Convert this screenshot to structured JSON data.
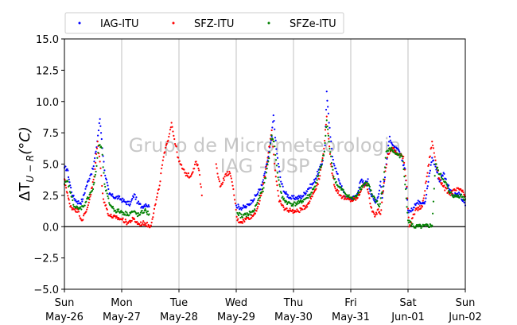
{
  "chart_data": {
    "type": "scatter",
    "title": "",
    "ylabel": "ΔT_{U−R}(°C)",
    "ylabel_parts": {
      "main": "ΔT",
      "sub": "U − R",
      "suffix": "(°C)"
    },
    "xlabel": "",
    "ylim": [
      -5.0,
      15.0
    ],
    "xlim_days": [
      "2019-05-26",
      "2019-06-02"
    ],
    "y_ticks": [
      "−5.0",
      "−2.5",
      "0.0",
      "2.5",
      "5.0",
      "7.5",
      "10.0",
      "12.5",
      "15.0"
    ],
    "y_tick_values": [
      -5.0,
      -2.5,
      0.0,
      2.5,
      5.0,
      7.5,
      10.0,
      12.5,
      15.0
    ],
    "x_ticks": [
      {
        "day": "Sun",
        "date": "May-26",
        "x": 0
      },
      {
        "day": "Mon",
        "date": "May-27",
        "x": 1
      },
      {
        "day": "Tue",
        "date": "May-28",
        "x": 2
      },
      {
        "day": "Wed",
        "date": "May-29",
        "x": 3
      },
      {
        "day": "Thu",
        "date": "May-30",
        "x": 4
      },
      {
        "day": "Fri",
        "date": "May-31",
        "x": 5
      },
      {
        "day": "Sat",
        "date": "Jun-01",
        "x": 6
      },
      {
        "day": "Sun",
        "date": "Jun-02",
        "x": 7
      }
    ],
    "grid": "vertical",
    "zero_line": true,
    "legend_position": "top, above plot",
    "watermark": [
      "Grupo de Micrometeorologia",
      "IAG - USP"
    ],
    "series": [
      {
        "name": "IAG-ITU",
        "color": "#0000ff",
        "points": [
          [
            0.0,
            4.7
          ],
          [
            0.05,
            4.6
          ],
          [
            0.1,
            3.3
          ],
          [
            0.15,
            2.4
          ],
          [
            0.22,
            2.0
          ],
          [
            0.28,
            1.9
          ],
          [
            0.32,
            2.2
          ],
          [
            0.38,
            3.2
          ],
          [
            0.45,
            4.1
          ],
          [
            0.5,
            4.6
          ],
          [
            0.55,
            6.0
          ],
          [
            0.62,
            8.6
          ],
          [
            0.65,
            7.0
          ],
          [
            0.7,
            4.5
          ],
          [
            0.78,
            2.6
          ],
          [
            0.85,
            2.4
          ],
          [
            0.95,
            2.3
          ],
          [
            1.05,
            2.0
          ],
          [
            1.15,
            1.8
          ],
          [
            1.22,
            2.6
          ],
          [
            1.28,
            1.9
          ],
          [
            1.35,
            1.6
          ],
          [
            1.42,
            1.8
          ],
          [
            1.48,
            1.6
          ],
          [
            3.0,
            1.7
          ],
          [
            3.08,
            1.5
          ],
          [
            3.18,
            1.6
          ],
          [
            3.28,
            2.1
          ],
          [
            3.35,
            2.5
          ],
          [
            3.45,
            3.3
          ],
          [
            3.55,
            5.3
          ],
          [
            3.62,
            7.2
          ],
          [
            3.65,
            8.9
          ],
          [
            3.7,
            6.2
          ],
          [
            3.78,
            3.6
          ],
          [
            3.85,
            2.7
          ],
          [
            3.95,
            2.3
          ],
          [
            4.05,
            2.3
          ],
          [
            4.15,
            2.4
          ],
          [
            4.25,
            3.0
          ],
          [
            4.35,
            3.5
          ],
          [
            4.45,
            4.6
          ],
          [
            4.5,
            5.0
          ],
          [
            4.55,
            6.5
          ],
          [
            4.58,
            10.8
          ],
          [
            4.62,
            8.3
          ],
          [
            4.68,
            5.6
          ],
          [
            4.75,
            4.4
          ],
          [
            4.82,
            3.4
          ],
          [
            4.9,
            2.4
          ],
          [
            5.0,
            2.2
          ],
          [
            5.1,
            2.5
          ],
          [
            5.18,
            3.7
          ],
          [
            5.25,
            3.4
          ],
          [
            5.3,
            3.8
          ],
          [
            5.35,
            2.6
          ],
          [
            5.42,
            2.0
          ],
          [
            5.48,
            2.4
          ],
          [
            5.52,
            3.6
          ],
          [
            5.55,
            2.3
          ],
          [
            5.62,
            5.0
          ],
          [
            5.68,
            7.2
          ],
          [
            5.75,
            6.3
          ],
          [
            5.85,
            6.0
          ],
          [
            5.95,
            4.6
          ],
          [
            6.0,
            1.3
          ],
          [
            6.05,
            1.2
          ],
          [
            6.12,
            1.8
          ],
          [
            6.2,
            2.0
          ],
          [
            6.3,
            2.0
          ],
          [
            6.42,
            5.5
          ],
          [
            6.48,
            4.8
          ],
          [
            6.55,
            3.6
          ],
          [
            6.62,
            4.3
          ],
          [
            6.72,
            3.0
          ],
          [
            6.8,
            2.5
          ],
          [
            6.9,
            2.6
          ],
          [
            7.0,
            1.7
          ]
        ]
      },
      {
        "name": "SFZ-ITU",
        "color": "#ff0000",
        "points": [
          [
            0.0,
            3.8
          ],
          [
            0.05,
            2.7
          ],
          [
            0.1,
            1.6
          ],
          [
            0.18,
            1.4
          ],
          [
            0.25,
            1.2
          ],
          [
            0.3,
            0.5
          ],
          [
            0.38,
            1.2
          ],
          [
            0.45,
            2.4
          ],
          [
            0.52,
            4.0
          ],
          [
            0.58,
            6.8
          ],
          [
            0.62,
            5.2
          ],
          [
            0.68,
            2.2
          ],
          [
            0.78,
            0.9
          ],
          [
            0.9,
            0.7
          ],
          [
            1.0,
            0.6
          ],
          [
            1.1,
            0.3
          ],
          [
            1.2,
            0.6
          ],
          [
            1.3,
            0.2
          ],
          [
            1.4,
            0.3
          ],
          [
            1.5,
            0.0
          ],
          [
            1.65,
            3.0
          ],
          [
            1.72,
            5.3
          ],
          [
            1.8,
            6.8
          ],
          [
            1.87,
            8.3
          ],
          [
            1.92,
            7.0
          ],
          [
            2.0,
            5.2
          ],
          [
            2.1,
            4.3
          ],
          [
            2.2,
            4.0
          ],
          [
            2.3,
            5.2
          ],
          [
            2.35,
            4.5
          ],
          [
            2.4,
            2.5
          ],
          [
            2.65,
            5.0
          ],
          [
            2.72,
            3.2
          ],
          [
            2.8,
            4.0
          ],
          [
            2.88,
            4.4
          ],
          [
            2.95,
            3.0
          ],
          [
            3.02,
            0.5
          ],
          [
            3.1,
            0.4
          ],
          [
            3.2,
            0.7
          ],
          [
            3.3,
            0.9
          ],
          [
            3.4,
            1.8
          ],
          [
            3.48,
            3.5
          ],
          [
            3.55,
            5.5
          ],
          [
            3.62,
            7.7
          ],
          [
            3.68,
            4.5
          ],
          [
            3.75,
            2.0
          ],
          [
            3.85,
            1.4
          ],
          [
            3.95,
            1.3
          ],
          [
            4.05,
            1.2
          ],
          [
            4.15,
            1.4
          ],
          [
            4.25,
            1.8
          ],
          [
            4.35,
            2.7
          ],
          [
            4.45,
            3.8
          ],
          [
            4.52,
            5.8
          ],
          [
            4.58,
            8.8
          ],
          [
            4.65,
            5.0
          ],
          [
            4.72,
            3.2
          ],
          [
            4.82,
            2.5
          ],
          [
            4.92,
            2.2
          ],
          [
            5.02,
            2.1
          ],
          [
            5.12,
            2.3
          ],
          [
            5.2,
            3.2
          ],
          [
            5.28,
            3.4
          ],
          [
            5.35,
            1.6
          ],
          [
            5.42,
            0.8
          ],
          [
            5.48,
            1.4
          ],
          [
            5.52,
            1.0
          ],
          [
            5.58,
            3.5
          ],
          [
            5.65,
            5.8
          ],
          [
            5.72,
            6.3
          ],
          [
            5.82,
            5.8
          ],
          [
            5.92,
            5.6
          ],
          [
            5.98,
            3.2
          ],
          [
            6.02,
            0.0
          ],
          [
            6.08,
            0.7
          ],
          [
            6.15,
            1.4
          ],
          [
            6.25,
            1.6
          ],
          [
            6.42,
            6.8
          ],
          [
            6.48,
            5.3
          ],
          [
            6.55,
            3.8
          ],
          [
            6.62,
            3.2
          ],
          [
            6.72,
            2.6
          ],
          [
            6.82,
            2.9
          ],
          [
            6.92,
            3.0
          ],
          [
            7.0,
            2.4
          ]
        ]
      },
      {
        "name": "SFZe-ITU",
        "color": "#008000",
        "points": [
          [
            0.0,
            3.4
          ],
          [
            0.06,
            3.6
          ],
          [
            0.12,
            2.4
          ],
          [
            0.18,
            1.6
          ],
          [
            0.25,
            1.4
          ],
          [
            0.32,
            1.6
          ],
          [
            0.38,
            2.0
          ],
          [
            0.45,
            2.7
          ],
          [
            0.5,
            3.0
          ],
          [
            0.55,
            4.4
          ],
          [
            0.6,
            6.5
          ],
          [
            0.65,
            6.3
          ],
          [
            0.7,
            3.4
          ],
          [
            0.78,
            1.9
          ],
          [
            0.88,
            1.3
          ],
          [
            0.98,
            1.2
          ],
          [
            1.1,
            1.0
          ],
          [
            1.2,
            1.2
          ],
          [
            1.3,
            0.9
          ],
          [
            1.4,
            1.3
          ],
          [
            1.48,
            1.0
          ],
          [
            3.02,
            1.1
          ],
          [
            3.1,
            0.8
          ],
          [
            3.2,
            1.0
          ],
          [
            3.3,
            1.2
          ],
          [
            3.38,
            2.1
          ],
          [
            3.48,
            3.1
          ],
          [
            3.56,
            5.2
          ],
          [
            3.62,
            7.3
          ],
          [
            3.66,
            6.8
          ],
          [
            3.72,
            4.3
          ],
          [
            3.8,
            2.3
          ],
          [
            3.9,
            1.9
          ],
          [
            4.0,
            1.8
          ],
          [
            4.1,
            1.9
          ],
          [
            4.2,
            2.2
          ],
          [
            4.3,
            2.6
          ],
          [
            4.4,
            3.5
          ],
          [
            4.48,
            4.8
          ],
          [
            4.54,
            6.0
          ],
          [
            4.58,
            8.5
          ],
          [
            4.62,
            6.8
          ],
          [
            4.7,
            4.0
          ],
          [
            4.78,
            3.2
          ],
          [
            4.88,
            2.8
          ],
          [
            4.96,
            2.4
          ],
          [
            5.06,
            2.2
          ],
          [
            5.16,
            3.0
          ],
          [
            5.25,
            3.5
          ],
          [
            5.32,
            3.3
          ],
          [
            5.38,
            2.4
          ],
          [
            5.45,
            2.0
          ],
          [
            5.5,
            1.6
          ],
          [
            5.56,
            3.2
          ],
          [
            5.62,
            6.0
          ],
          [
            5.7,
            6.2
          ],
          [
            5.8,
            5.8
          ],
          [
            5.9,
            5.6
          ],
          [
            5.96,
            3.0
          ],
          [
            6.0,
            0.5
          ],
          [
            6.1,
            0.0
          ],
          [
            6.25,
            0.0
          ],
          [
            6.42,
            0.1
          ],
          [
            6.48,
            5.0
          ],
          [
            6.55,
            4.2
          ],
          [
            6.65,
            3.6
          ],
          [
            6.72,
            2.7
          ],
          [
            6.82,
            2.4
          ],
          [
            6.92,
            2.5
          ],
          [
            7.0,
            2.2
          ]
        ]
      }
    ]
  }
}
